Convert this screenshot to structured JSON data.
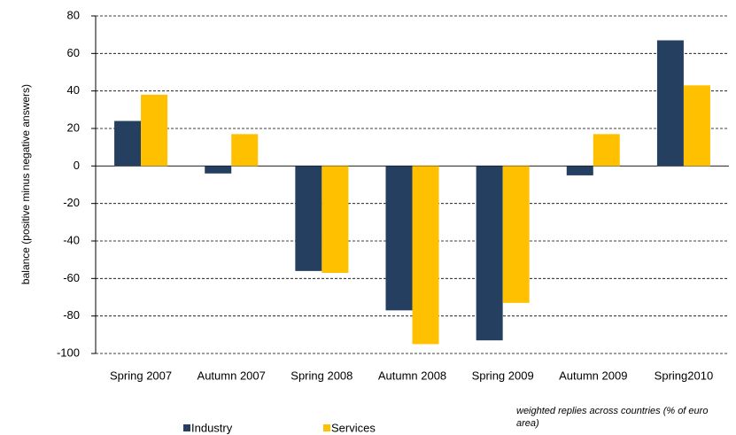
{
  "chart_data": {
    "type": "bar",
    "ylabel": "balance (positive minus negative answers)",
    "note": "weighted replies across countries (% of euro area)",
    "categories": [
      "Spring 2007",
      "Autumn 2007",
      "Spring 2008",
      "Autumn 2008",
      "Spring 2009",
      "Autumn 2009",
      "Spring2010"
    ],
    "series": [
      {
        "name": "Industry",
        "color": "#243f60",
        "values": [
          24,
          -4,
          -56,
          -77,
          -93,
          -5,
          67
        ]
      },
      {
        "name": "Services",
        "color": "#ffc000",
        "values": [
          38,
          17,
          -57,
          -95,
          -73,
          17,
          43
        ]
      }
    ],
    "ylim": [
      -100,
      80
    ],
    "yticks": [
      -100,
      -80,
      -60,
      -40,
      -20,
      0,
      20,
      40,
      60,
      80
    ],
    "grid": true
  }
}
